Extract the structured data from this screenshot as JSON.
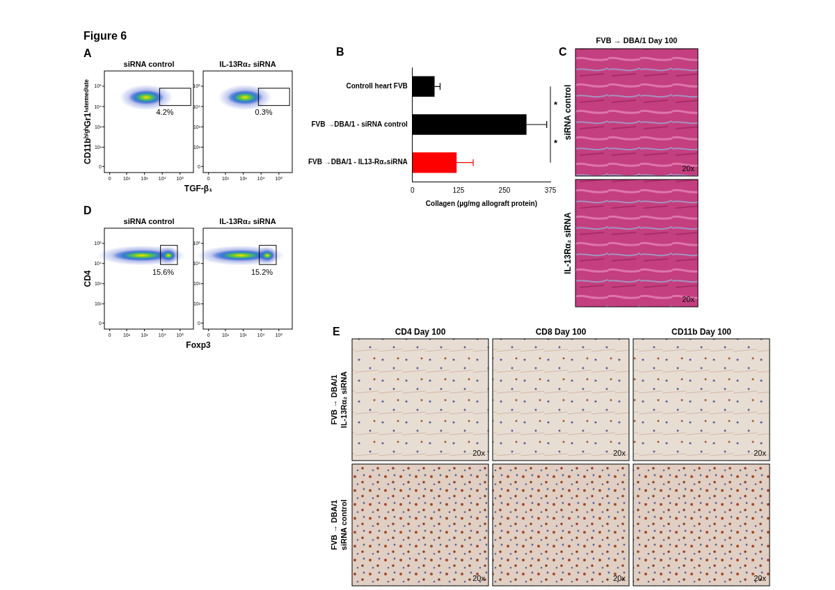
{
  "title": "Figure 6",
  "panels": {
    "A": {
      "label": "A",
      "y_label": "CD11bʰⁱᵍʰGr1ⁱⁿᵗᵉʳᵐᵉᵈⁱᵃᵗᵉ",
      "x_label": "TGF-β₁",
      "ticks": [
        0,
        {
          "value": 100,
          "label": "10²"
        },
        {
          "value": 1000,
          "label": "10³"
        },
        {
          "value": 10000,
          "label": "10⁴"
        },
        {
          "value": 100000,
          "label": "10⁵"
        }
      ],
      "plots": [
        {
          "title": "siRNA control",
          "gate_label": "4.2%"
        },
        {
          "title": "IL-13Rα₂ siRNA",
          "gate_label": "0.3%"
        }
      ]
    },
    "B": {
      "label": "B"
    },
    "C": {
      "label": "C",
      "title": "FVB → DBA/1 Day 100",
      "rows": [
        "siRNA control",
        "IL-13Rα₂ siRNA"
      ],
      "magnification": "20x"
    },
    "D": {
      "label": "D",
      "y_label": "CD4",
      "x_label": "Foxp3",
      "ticks": [
        0,
        {
          "value": 100,
          "label": "10²"
        },
        {
          "value": 1000,
          "label": "10³"
        },
        {
          "value": 10000,
          "label": "10⁴"
        },
        {
          "value": 100000,
          "label": "10⁵"
        }
      ],
      "plots": [
        {
          "title": "siRNA control",
          "gate_label": "15.6%"
        },
        {
          "title": "IL-13Rα₂ siRNA",
          "gate_label": "15.2%"
        }
      ]
    },
    "E": {
      "label": "E",
      "columns": [
        "CD4 Day 100",
        "CD8 Day 100",
        "CD11b Day 100"
      ],
      "rows": [
        [
          "FVB → DBA/1",
          "IL-13Rα₂ siRNA"
        ],
        [
          "FVB → DBA/1",
          "siRNA control"
        ]
      ],
      "magnification": "20x"
    }
  },
  "chart_data": {
    "type": "bar",
    "orientation": "horizontal",
    "categories": [
      "Controll heart FVB",
      "FVB →DBA/1 - siRNA control",
      "FVB →DBA/1 - IL13-Rα₂siRNA"
    ],
    "values": [
      60,
      310,
      120
    ],
    "errors": [
      15,
      55,
      45
    ],
    "colors": [
      "#000000",
      "#000000",
      "#ff0000"
    ],
    "x_label": "Collagen (µg/mg allograft protein)",
    "xlim": [
      0,
      375
    ],
    "xticks": [
      0,
      125,
      250,
      375
    ],
    "grid": false,
    "significance": [
      {
        "between": [
          "Controll heart FVB",
          "FVB →DBA/1 - siRNA control"
        ],
        "label": "*"
      },
      {
        "between": [
          "FVB →DBA/1 - siRNA control",
          "FVB →DBA/1 - IL13-Rα₂siRNA"
        ],
        "label": "*"
      }
    ]
  }
}
